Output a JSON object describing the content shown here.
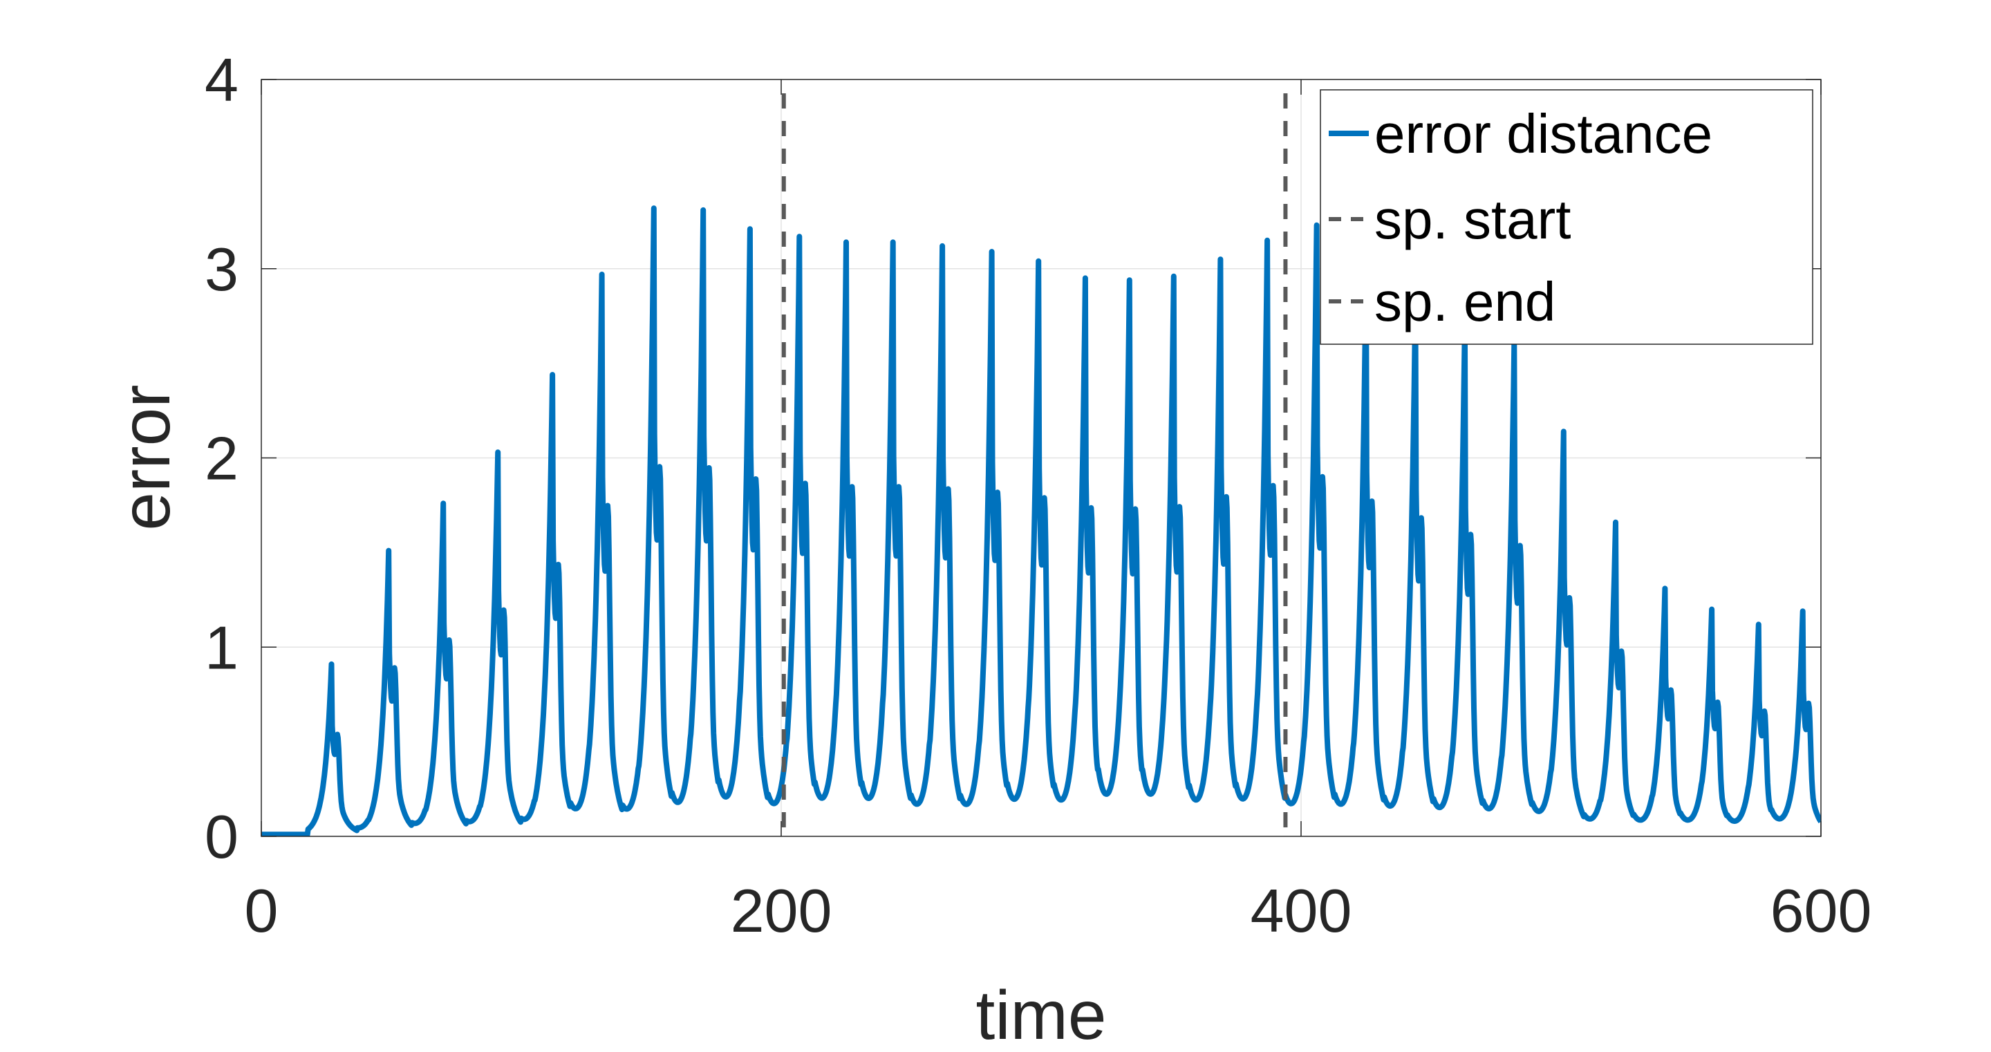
{
  "chart_data": {
    "type": "line",
    "title": "",
    "xlabel": "time",
    "ylabel": "error",
    "xlim": [
      0,
      600
    ],
    "ylim": [
      0,
      4
    ],
    "xticks": [
      "0",
      "200",
      "400",
      "600"
    ],
    "yticks": [
      "0",
      "1",
      "2",
      "3",
      "4"
    ],
    "grid": true,
    "legend_position": "top-right",
    "legend": [
      "error distance",
      "sp. start",
      "sp. end"
    ],
    "series": [
      {
        "name": "error distance",
        "color": "#0072BD",
        "peaks": [
          {
            "t": 27,
            "v": 0.9
          },
          {
            "t": 49,
            "v": 1.5
          },
          {
            "t": 70,
            "v": 1.75
          },
          {
            "t": 91,
            "v": 2.02
          },
          {
            "t": 112,
            "v": 2.43
          },
          {
            "t": 131,
            "v": 2.96
          },
          {
            "t": 151,
            "v": 3.31
          },
          {
            "t": 170,
            "v": 3.3
          },
          {
            "t": 188,
            "v": 3.2
          },
          {
            "t": 207,
            "v": 3.16
          },
          {
            "t": 225,
            "v": 3.13
          },
          {
            "t": 243,
            "v": 3.13
          },
          {
            "t": 262,
            "v": 3.11
          },
          {
            "t": 281,
            "v": 3.08
          },
          {
            "t": 299,
            "v": 3.03
          },
          {
            "t": 317,
            "v": 2.94
          },
          {
            "t": 334,
            "v": 2.93
          },
          {
            "t": 351,
            "v": 2.95
          },
          {
            "t": 369,
            "v": 3.04
          },
          {
            "t": 387,
            "v": 3.14
          },
          {
            "t": 406,
            "v": 3.22
          },
          {
            "t": 425,
            "v": 3.0
          },
          {
            "t": 444,
            "v": 2.85
          },
          {
            "t": 463,
            "v": 2.7
          },
          {
            "t": 482,
            "v": 2.6
          },
          {
            "t": 501,
            "v": 2.13
          },
          {
            "t": 521,
            "v": 1.65
          },
          {
            "t": 540,
            "v": 1.3
          },
          {
            "t": 558,
            "v": 1.19
          },
          {
            "t": 576,
            "v": 1.11
          },
          {
            "t": 593,
            "v": 1.18
          }
        ]
      },
      {
        "name": "sp. start",
        "color": "#595959",
        "style": "dashed",
        "x": 201
      },
      {
        "name": "sp. end",
        "color": "#595959",
        "style": "dashed",
        "x": 394
      }
    ]
  }
}
